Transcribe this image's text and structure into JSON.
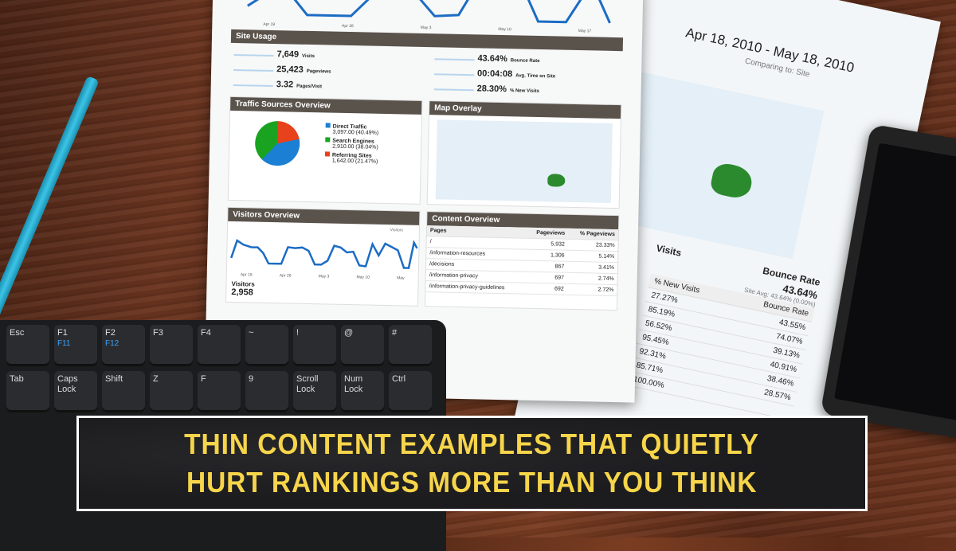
{
  "report": {
    "top_chart_ticks": [
      "Apr 19",
      "Apr 26",
      "May 3",
      "May 10",
      "May 17"
    ],
    "site_usage": {
      "title": "Site Usage",
      "metrics": [
        {
          "value": "7,649",
          "label": "Visits"
        },
        {
          "value": "43.64%",
          "label": "Bounce Rate"
        },
        {
          "value": "25,423",
          "label": "Pageviews"
        },
        {
          "value": "00:04:08",
          "label": "Avg. Time on Site"
        },
        {
          "value": "3.32",
          "label": "Pages/Visit"
        },
        {
          "value": "28.30%",
          "label": "% New Visits"
        }
      ]
    },
    "traffic_sources": {
      "title": "Traffic Sources Overview",
      "items": [
        {
          "name": "Direct Traffic",
          "detail": "3,097.00 (40.49%)",
          "color": "#1b7fd3",
          "share": 40.49
        },
        {
          "name": "Search Engines",
          "detail": "2,910.00 (38.04%)",
          "color": "#1aa320",
          "share": 38.04
        },
        {
          "name": "Referring Sites",
          "detail": "1,642.00 (21.47%)",
          "color": "#e8421c",
          "share": 21.47
        }
      ]
    },
    "map_overlay": {
      "title": "Map Overlay"
    },
    "visitors": {
      "title": "Visitors Overview",
      "legend": "Visitors",
      "label": "Visitors",
      "total": "2,958",
      "ticks": [
        "Apr 19",
        "Apr 26",
        "May 3",
        "May 10",
        "May"
      ]
    },
    "content": {
      "title": "Content Overview",
      "headers": [
        "Pages",
        "Pageviews",
        "% Pageviews"
      ],
      "rows": [
        [
          "/",
          "5,932",
          "23.33%"
        ],
        [
          "/information-resources",
          "1,306",
          "5.14%"
        ],
        [
          "/decisions",
          "867",
          "3.41%"
        ],
        [
          "/information-privacy",
          "697",
          "2.74%"
        ],
        [
          "/information-privacy-guidelines",
          "692",
          "2.72%"
        ]
      ]
    }
  },
  "second_page": {
    "date_range": "Apr 18, 2010 - May 18, 2010",
    "comparing": "Comparing to: Site",
    "visits_label": "Visits",
    "bounce": {
      "title": "Bounce Rate",
      "value": "43.64%",
      "avg": "Site Avg: 43.64% (0.00%)"
    },
    "headers": [
      "% New Visits",
      "Bounce Rate"
    ],
    "rows": [
      [
        "27.27%",
        "43.55%"
      ],
      [
        "85.19%",
        "74.07%"
      ],
      [
        "56.52%",
        "39.13%"
      ],
      [
        "95.45%",
        "40.91%"
      ],
      [
        "92.31%",
        "38.46%"
      ],
      [
        "85.71%",
        "28.57%"
      ],
      [
        "100.00%",
        ""
      ]
    ]
  },
  "keyboard": {
    "keys": [
      {
        "k": "Esc",
        "f": ""
      },
      {
        "k": "F1",
        "f": "F11"
      },
      {
        "k": "F2",
        "f": "F12"
      },
      {
        "k": "F3",
        "f": ""
      },
      {
        "k": "F4",
        "f": ""
      },
      {
        "k": "~",
        "f": ""
      },
      {
        "k": "!",
        "f": ""
      },
      {
        "k": "@",
        "f": ""
      },
      {
        "k": "#",
        "f": ""
      },
      {
        "k": "Tab",
        "f": ""
      },
      {
        "k": "Caps Lock",
        "f": ""
      },
      {
        "k": "Shift",
        "f": ""
      },
      {
        "k": "Z",
        "f": ""
      },
      {
        "k": "F",
        "f": ""
      },
      {
        "k": "9",
        "f": ""
      },
      {
        "k": "Scroll Lock",
        "f": ""
      },
      {
        "k": "Num Lock",
        "f": ""
      },
      {
        "k": "Ctrl",
        "f": ""
      }
    ]
  },
  "banner": {
    "line1": "THIN CONTENT EXAMPLES THAT QUIETLY",
    "line2": "HURT RANKINGS MORE THAN YOU THINK",
    "text_color": "#f7d54a"
  }
}
